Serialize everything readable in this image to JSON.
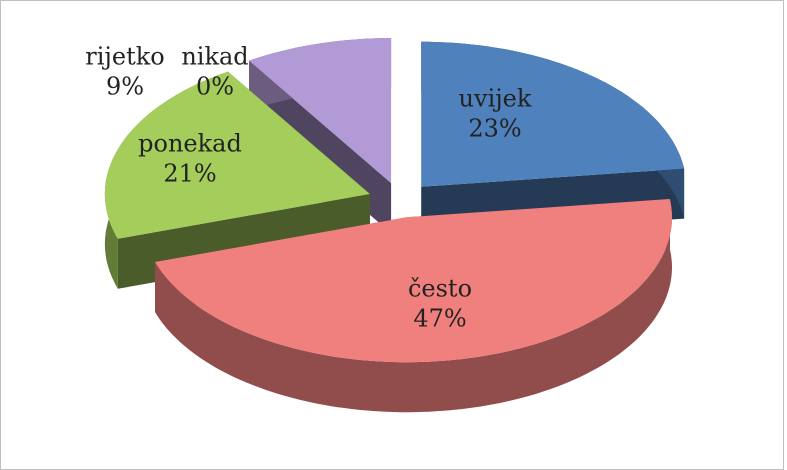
{
  "chart_data": {
    "type": "pie",
    "categories": [
      "uvijek",
      "često",
      "ponekad",
      "rijetko",
      "nikad"
    ],
    "values": [
      23,
      47,
      21,
      9,
      0
    ],
    "value_labels": [
      "23%",
      "47%",
      "21%",
      "9%",
      "0%"
    ],
    "colors": [
      "#4f81bd",
      "#f0807e",
      "#a4cd5c",
      "#b29ad6",
      "#f79646"
    ]
  }
}
